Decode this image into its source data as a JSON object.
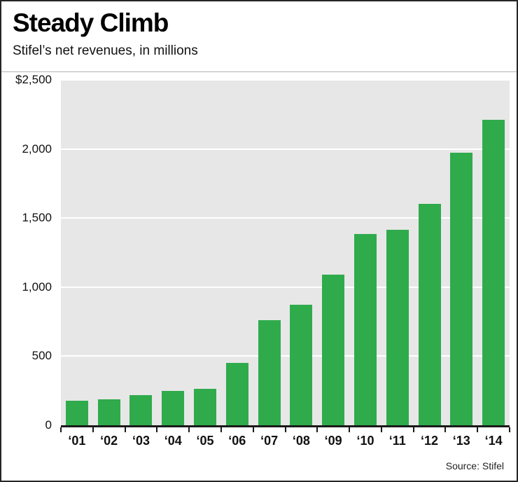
{
  "header": {
    "title": "Steady Climb",
    "subtitle": "Stifel’s net revenues, in millions"
  },
  "footer": {
    "source": "Source: Stifel"
  },
  "chart_data": {
    "type": "bar",
    "title": "Steady Climb",
    "subtitle": "Stifel’s net revenues, in millions",
    "categories": [
      "‘01",
      "‘02",
      "‘03",
      "‘04",
      "‘05",
      "‘06",
      "‘07",
      "‘08",
      "‘09",
      "‘10",
      "‘11",
      "‘12",
      "‘13",
      "‘14"
    ],
    "values": [
      176,
      189,
      216,
      247,
      264,
      452,
      763,
      870,
      1091,
      1382,
      1417,
      1600,
      1971,
      2209
    ],
    "xlabel": "",
    "ylabel": "",
    "ylim": [
      0,
      2500
    ],
    "yticks": [
      0,
      500,
      1000,
      1500,
      2000,
      2500
    ],
    "ytick_labels": [
      "0",
      "500",
      "1,000",
      "1,500",
      "2,000",
      "$2,500"
    ],
    "grid": true,
    "legend_position": "none",
    "bar_color": "#2fab4c",
    "plot_bg": "#e7e7e7",
    "gridline_color": "#ffffff",
    "axis_color": "#1a1a1a",
    "source": "Source: Stifel"
  }
}
